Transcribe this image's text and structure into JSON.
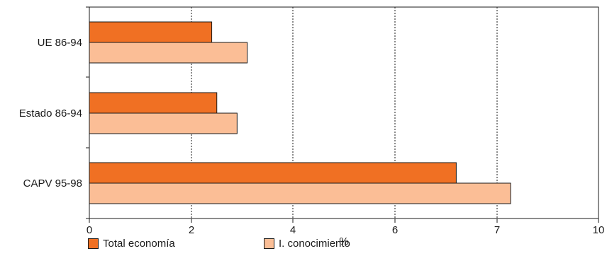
{
  "chart_data": {
    "type": "bar",
    "orientation": "horizontal",
    "categories": [
      "UE 86-94",
      "Estado 86-94",
      "CAPV 95-98"
    ],
    "series": [
      {
        "name": "Total economía",
        "color": "#f07023",
        "values": [
          2.4,
          2.5,
          6.6
        ]
      },
      {
        "name": "I. conocimiento",
        "color": "#fbbe96",
        "values": [
          3.1,
          2.9,
          7.4
        ]
      }
    ],
    "xticks": [
      "0",
      "2",
      "4",
      "6",
      "7",
      "10"
    ],
    "xlabel": "%",
    "ylabel": "",
    "title": "",
    "xlim": [
      0,
      10
    ],
    "grid": "vertical dashed",
    "legend_position": "bottom"
  }
}
